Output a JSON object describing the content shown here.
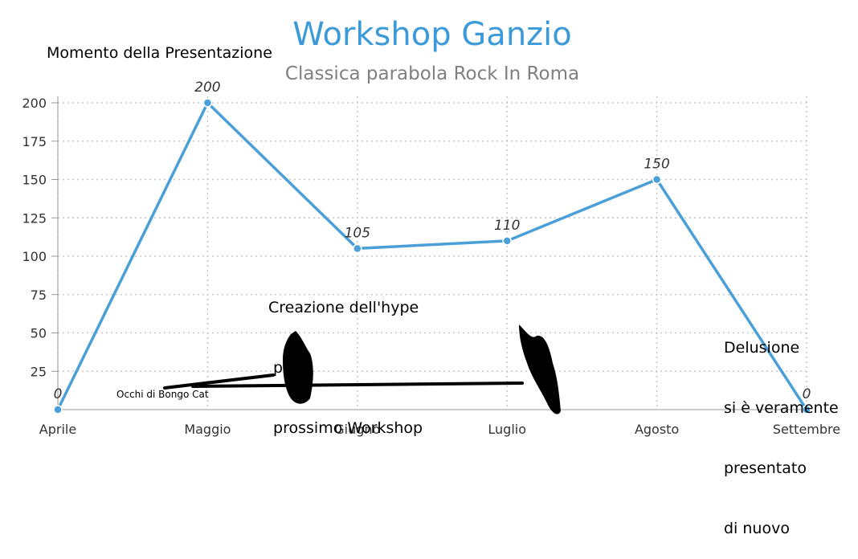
{
  "chart_data": {
    "type": "line",
    "title": "Workshop Ganzio",
    "subtitle": "Classica parabola Rock In Roma",
    "categories": [
      "Aprile",
      "Maggio",
      "Giugno",
      "Luglio",
      "Agosto",
      "Settembre"
    ],
    "values": [
      0,
      200,
      105,
      110,
      150,
      0
    ],
    "data_labels": [
      "0",
      "200",
      "105",
      "110",
      "150",
      "0"
    ],
    "yticks": [
      "25",
      "50",
      "75",
      "100",
      "125",
      "150",
      "175",
      "200"
    ],
    "ylim": [
      0,
      200
    ],
    "grid": true,
    "series_color": "#4a9fd8",
    "title_color": "#3d9ad9",
    "subtitle_color": "#808080"
  },
  "annotations": {
    "presentazione": "Momento della Presentazione",
    "hype_line1": "Creazione dell'hype",
    "hype_line2": " per il",
    "hype_line3": " prossimo Workshop",
    "delusione_line1": "Delusione",
    "delusione_line2": "si è veramente",
    "delusione_line3": "presentato",
    "delusione_line4": "di nuovo",
    "bongo_cat": "Occhi di Bongo Cat"
  }
}
